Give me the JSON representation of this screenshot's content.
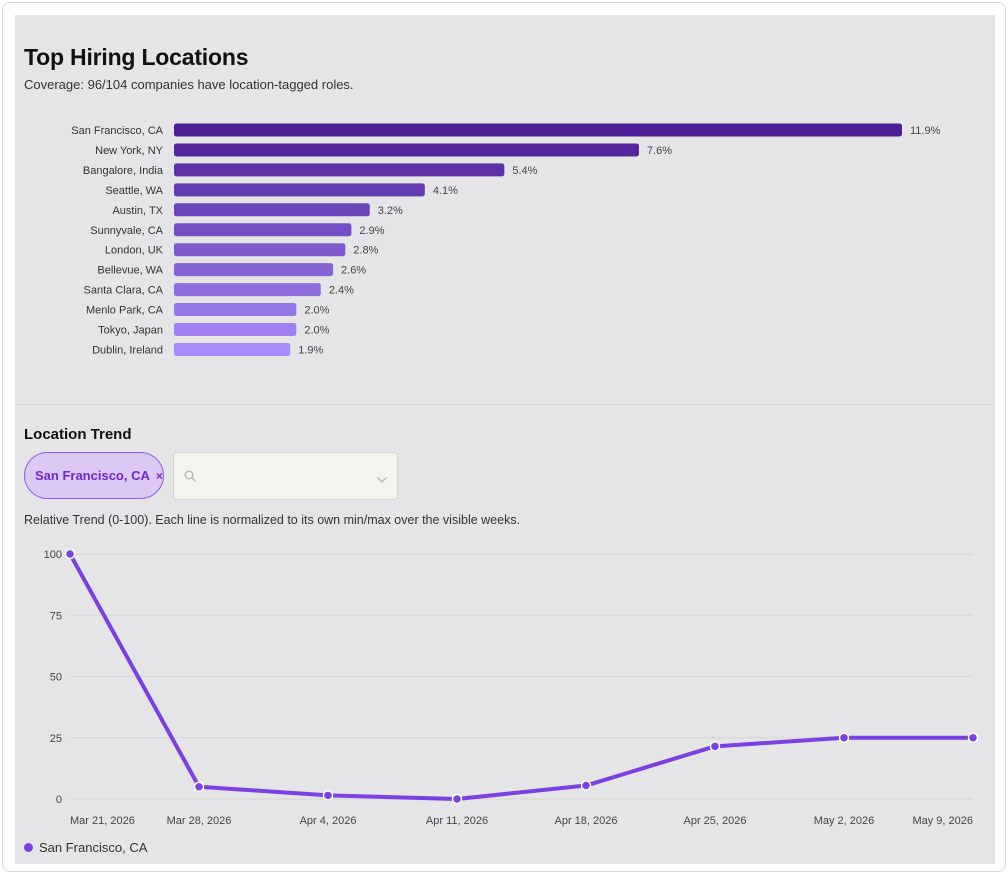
{
  "header": {
    "title": "Top Hiring Locations",
    "coverage": "Coverage: 96/104 companies have location-tagged roles."
  },
  "trend": {
    "section_title": "Location Trend",
    "chip_label": "San Francisco, CA",
    "chip_remove": "×",
    "search_placeholder": "",
    "note": "Relative Trend (0-100). Each line is normalized to its own min/max over the visible weeks.",
    "legend_label": "San Francisco, CA"
  },
  "colors": {
    "bar_dark": "#4c1d95",
    "bar_light": "#a78bfa",
    "line": "#7b3fe4"
  },
  "chart_data": [
    {
      "type": "bar",
      "orientation": "horizontal",
      "categories": [
        "San Francisco, CA",
        "New York, NY",
        "Bangalore, India",
        "Seattle, WA",
        "Austin, TX",
        "Sunnyvale, CA",
        "London, UK",
        "Bellevue, WA",
        "Santa Clara, CA",
        "Menlo Park, CA",
        "Tokyo, Japan",
        "Dublin, Ireland"
      ],
      "values": [
        11.9,
        7.6,
        5.4,
        4.1,
        3.2,
        2.9,
        2.8,
        2.6,
        2.4,
        2.0,
        2.0,
        1.9
      ],
      "value_labels": [
        "11.9%",
        "7.6%",
        "5.4%",
        "4.1%",
        "3.2%",
        "2.9%",
        "2.8%",
        "2.6%",
        "2.4%",
        "2.0%",
        "2.0%",
        "1.9%"
      ]
    },
    {
      "type": "line",
      "x": [
        "Mar 21, 2026",
        "Mar 28, 2026",
        "Apr 4, 2026",
        "Apr 11, 2026",
        "Apr 18, 2026",
        "Apr 25, 2026",
        "May 2, 2026",
        "May 9, 2026"
      ],
      "series": [
        {
          "name": "San Francisco, CA",
          "values": [
            100,
            5,
            1.5,
            0,
            5.5,
            21.5,
            25,
            25
          ]
        }
      ],
      "ylim": [
        0,
        100
      ],
      "yticks": [
        0,
        25,
        50,
        75,
        100
      ],
      "grid": true,
      "legend": "bottom-left"
    }
  ]
}
